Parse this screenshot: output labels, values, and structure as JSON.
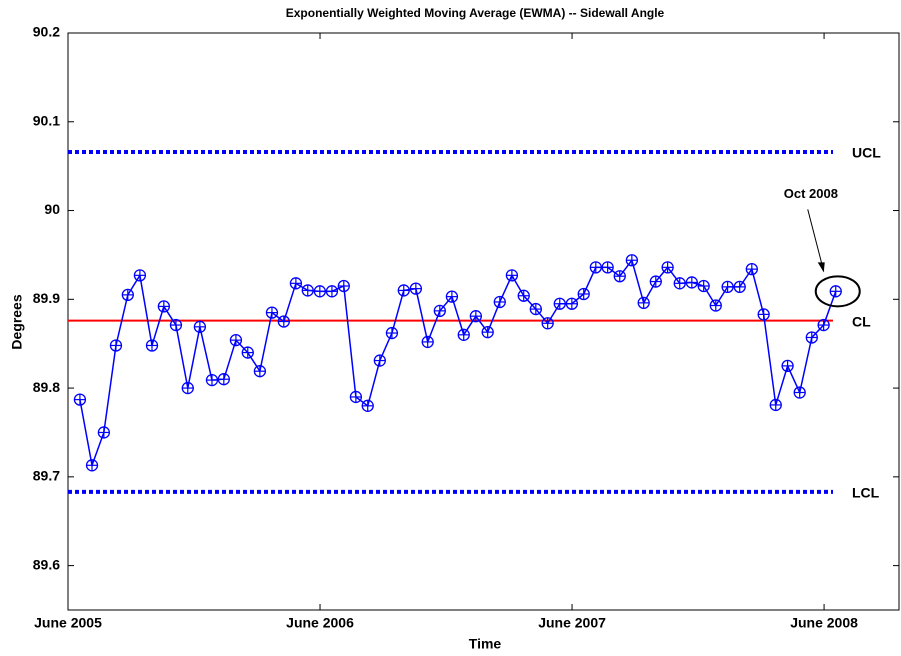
{
  "chart_data": {
    "type": "line",
    "title": "Exponentially Weighted Moving Average (EWMA)  -- Sidewall Angle",
    "x_label": "Time",
    "y_label": "Degrees",
    "xlim": [
      2005.4167,
      2008.714
    ],
    "xticks": [
      {
        "value": 2005.4167,
        "label": "June 2005"
      },
      {
        "value": 2006.4167,
        "label": "June 2006"
      },
      {
        "value": 2007.4167,
        "label": "June 2007"
      },
      {
        "value": 2008.4167,
        "label": "June 2008"
      }
    ],
    "ylim": [
      89.55,
      90.2
    ],
    "yticks": [
      89.6,
      89.7,
      89.8,
      89.9,
      90,
      90.1,
      90.2
    ],
    "grid": false,
    "series": [
      {
        "name": "EWMA",
        "color": "#0000ff",
        "x": [
          2005.464,
          2005.512,
          2005.559,
          2005.607,
          2005.654,
          2005.702,
          2005.75,
          2005.797,
          2005.845,
          2005.892,
          2005.94,
          2005.988,
          2006.035,
          2006.083,
          2006.13,
          2006.178,
          2006.226,
          2006.273,
          2006.321,
          2006.368,
          2006.416,
          2006.464,
          2006.511,
          2006.559,
          2006.606,
          2006.654,
          2006.702,
          2006.749,
          2006.797,
          2006.844,
          2006.892,
          2006.94,
          2006.987,
          2007.035,
          2007.082,
          2007.13,
          2007.178,
          2007.225,
          2007.273,
          2007.32,
          2007.368,
          2007.416,
          2007.463,
          2007.511,
          2007.558,
          2007.606,
          2007.654,
          2007.701,
          2007.749,
          2007.796,
          2007.844,
          2007.892,
          2007.939,
          2007.987,
          2008.034,
          2008.082,
          2008.13,
          2008.177,
          2008.225,
          2008.272,
          2008.32,
          2008.368,
          2008.415,
          2008.463
        ],
        "values": [
          89.787,
          89.713,
          89.75,
          89.848,
          89.905,
          89.927,
          89.848,
          89.892,
          89.871,
          89.8,
          89.869,
          89.809,
          89.81,
          89.854,
          89.84,
          89.819,
          89.885,
          89.875,
          89.918,
          89.91,
          89.909,
          89.909,
          89.915,
          89.79,
          89.78,
          89.831,
          89.862,
          89.91,
          89.912,
          89.852,
          89.887,
          89.903,
          89.86,
          89.881,
          89.863,
          89.897,
          89.927,
          89.904,
          89.889,
          89.873,
          89.895,
          89.895,
          89.906,
          89.936,
          89.936,
          89.926,
          89.944,
          89.896,
          89.92,
          89.936,
          89.918,
          89.919,
          89.915,
          89.893,
          89.914,
          89.914,
          89.934,
          89.883,
          89.781,
          89.825,
          89.795,
          89.857,
          89.871,
          89.909
        ]
      }
    ],
    "reference_lines": [
      {
        "name": "UCL",
        "value": 90.066,
        "color": "#0000ff",
        "style": "dotted"
      },
      {
        "name": "CL",
        "value": 89.876,
        "color": "#ff0000",
        "style": "solid"
      },
      {
        "name": "LCL",
        "value": 89.683,
        "color": "#0000ff",
        "style": "dotted"
      }
    ],
    "annotation": "Oct 2008"
  }
}
